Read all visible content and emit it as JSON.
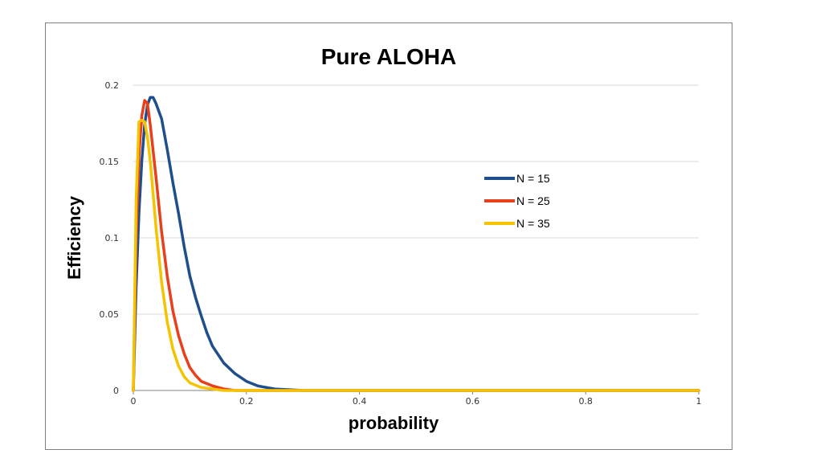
{
  "chart_data": {
    "type": "line",
    "title": "Pure ALOHA",
    "xlabel": "probability",
    "ylabel": "Efficiency",
    "xlim": [
      0,
      1
    ],
    "ylim": [
      0,
      0.2
    ],
    "x_ticks": [
      "0",
      "0.2",
      "0.4",
      "0.6",
      "0.8",
      "1"
    ],
    "y_ticks": [
      "0",
      "0.05",
      "0.1",
      "0.15",
      "0.2"
    ],
    "grid": "horizontal",
    "legend_position": "right",
    "series": [
      {
        "name": "N = 15",
        "color": "#1f4e8c",
        "x": [
          0,
          0.005,
          0.01,
          0.015,
          0.02,
          0.025,
          0.03,
          0.035,
          0.04,
          0.05,
          0.06,
          0.07,
          0.08,
          0.09,
          0.1,
          0.11,
          0.12,
          0.13,
          0.14,
          0.16,
          0.18,
          0.2,
          0.22,
          0.25,
          0.3,
          0.4,
          0.6,
          0.8,
          1.0
        ],
        "y": [
          0,
          0.068,
          0.116,
          0.151,
          0.174,
          0.187,
          0.192,
          0.192,
          0.188,
          0.178,
          0.158,
          0.136,
          0.116,
          0.094,
          0.075,
          0.061,
          0.049,
          0.038,
          0.029,
          0.018,
          0.011,
          0.006,
          0.003,
          0.001,
          0.0,
          0.0,
          0.0,
          0.0,
          0.0
        ]
      },
      {
        "name": "N = 25",
        "color": "#e8401c",
        "x": [
          0,
          0.005,
          0.01,
          0.015,
          0.02,
          0.025,
          0.03,
          0.04,
          0.05,
          0.06,
          0.07,
          0.08,
          0.09,
          0.1,
          0.11,
          0.12,
          0.14,
          0.16,
          0.18,
          0.2,
          0.25,
          0.3,
          0.4,
          0.6,
          0.8,
          1.0
        ],
        "y": [
          0,
          0.099,
          0.154,
          0.18,
          0.19,
          0.188,
          0.174,
          0.14,
          0.104,
          0.075,
          0.052,
          0.036,
          0.024,
          0.015,
          0.01,
          0.006,
          0.003,
          0.001,
          0.0,
          0.0,
          0.0,
          0.0,
          0.0,
          0.0,
          0.0,
          0.0
        ]
      },
      {
        "name": "N = 35",
        "color": "#f5c400",
        "x": [
          0,
          0.005,
          0.01,
          0.015,
          0.02,
          0.025,
          0.03,
          0.035,
          0.04,
          0.05,
          0.06,
          0.07,
          0.08,
          0.09,
          0.1,
          0.12,
          0.14,
          0.16,
          0.2,
          0.3,
          0.4,
          0.6,
          0.8,
          1.0
        ],
        "y": [
          0,
          0.125,
          0.176,
          0.177,
          0.176,
          0.166,
          0.15,
          0.129,
          0.107,
          0.071,
          0.045,
          0.027,
          0.016,
          0.009,
          0.005,
          0.002,
          0.001,
          0.0,
          0.0,
          0.0,
          0.0,
          0.0,
          0.0,
          0.0
        ]
      }
    ]
  }
}
